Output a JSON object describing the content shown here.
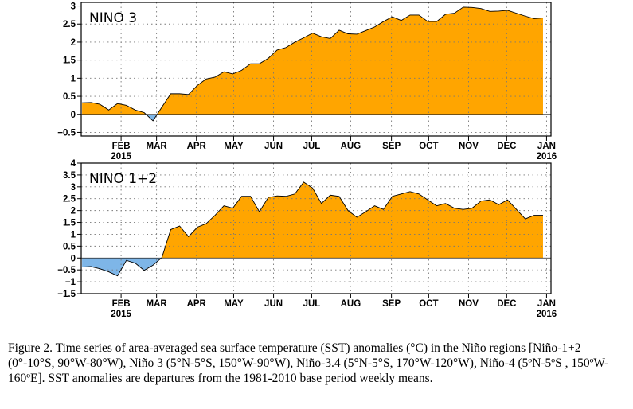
{
  "colors": {
    "positive": "#FFA500",
    "negative": "#7EB6E8",
    "outline": "#000000",
    "grid": "#777777"
  },
  "chart_data": [
    {
      "type": "area",
      "title": "NINO 3",
      "xlabel": "",
      "ylabel": "",
      "ylim": [
        -0.6,
        3.1
      ],
      "yticks": [
        -0.5,
        0,
        0.5,
        1,
        1.5,
        2,
        2.5,
        3
      ],
      "ytick_labels": [
        "−0.5",
        "0",
        "0.5",
        "1",
        "1.5",
        "2",
        "2.5",
        "3"
      ],
      "x_unit": "weeks since 31 Dec 2014",
      "xlim": [
        -0.1,
        52.9
      ],
      "month_ticks": [
        {
          "x": 4.4,
          "label": "FEB",
          "sub": "2015"
        },
        {
          "x": 8.4,
          "label": "MAR",
          "sub": ""
        },
        {
          "x": 12.9,
          "label": "APR",
          "sub": ""
        },
        {
          "x": 17.1,
          "label": "MAY",
          "sub": ""
        },
        {
          "x": 21.6,
          "label": "JUN",
          "sub": ""
        },
        {
          "x": 25.9,
          "label": "JUL",
          "sub": ""
        },
        {
          "x": 30.3,
          "label": "AUG",
          "sub": ""
        },
        {
          "x": 34.9,
          "label": "SEP",
          "sub": ""
        },
        {
          "x": 39.1,
          "label": "OCT",
          "sub": ""
        },
        {
          "x": 43.6,
          "label": "NOV",
          "sub": ""
        },
        {
          "x": 47.9,
          "label": "DEC",
          "sub": ""
        },
        {
          "x": 52.4,
          "label": "JAN",
          "sub": "2016"
        }
      ],
      "x": [
        0,
        1,
        2,
        3,
        4,
        5,
        6,
        7,
        8,
        9,
        10,
        11,
        12,
        13,
        14,
        15,
        16,
        17,
        18,
        19,
        20,
        21,
        22,
        23,
        24,
        25,
        26,
        27,
        28,
        29,
        30,
        31,
        32,
        33,
        34,
        35,
        36,
        37,
        38,
        39,
        40,
        41,
        42,
        43,
        44,
        45,
        46,
        47,
        48,
        49,
        50,
        51,
        52
      ],
      "values": [
        0.32,
        0.33,
        0.28,
        0.12,
        0.3,
        0.25,
        0.12,
        0.05,
        -0.18,
        0.2,
        0.57,
        0.57,
        0.55,
        0.8,
        0.98,
        1.03,
        1.18,
        1.12,
        1.22,
        1.4,
        1.4,
        1.55,
        1.78,
        1.85,
        2.0,
        2.12,
        2.25,
        2.15,
        2.1,
        2.33,
        2.23,
        2.22,
        2.32,
        2.42,
        2.57,
        2.7,
        2.6,
        2.75,
        2.75,
        2.57,
        2.57,
        2.77,
        2.8,
        2.97,
        2.96,
        2.93,
        2.85,
        2.86,
        2.88,
        2.8,
        2.72,
        2.65,
        2.67
      ]
    },
    {
      "type": "area",
      "title": "NINO 1+2",
      "xlabel": "",
      "ylabel": "",
      "ylim": [
        -1.5,
        4.0
      ],
      "yticks": [
        -1.5,
        -1,
        -0.5,
        0,
        0.5,
        1,
        1.5,
        2,
        2.5,
        3,
        3.5,
        4
      ],
      "ytick_labels": [
        "−1.5",
        "−1",
        "−0.5",
        "0",
        "0.5",
        "1",
        "1.5",
        "2",
        "2.5",
        "3",
        "3.5",
        "4"
      ],
      "x_unit": "weeks since 31 Dec 2014",
      "xlim": [
        -0.1,
        52.9
      ],
      "month_ticks": [
        {
          "x": 4.4,
          "label": "FEB",
          "sub": "2015"
        },
        {
          "x": 8.4,
          "label": "MAR",
          "sub": ""
        },
        {
          "x": 12.9,
          "label": "APR",
          "sub": ""
        },
        {
          "x": 17.1,
          "label": "MAY",
          "sub": ""
        },
        {
          "x": 21.6,
          "label": "JUN",
          "sub": ""
        },
        {
          "x": 25.9,
          "label": "JUL",
          "sub": ""
        },
        {
          "x": 30.3,
          "label": "AUG",
          "sub": ""
        },
        {
          "x": 34.9,
          "label": "SEP",
          "sub": ""
        },
        {
          "x": 39.1,
          "label": "OCT",
          "sub": ""
        },
        {
          "x": 43.6,
          "label": "NOV",
          "sub": ""
        },
        {
          "x": 47.9,
          "label": "DEC",
          "sub": ""
        },
        {
          "x": 52.4,
          "label": "JAN",
          "sub": "2016"
        }
      ],
      "x": [
        0,
        1,
        2,
        3,
        4,
        5,
        6,
        7,
        8,
        9,
        10,
        11,
        12,
        13,
        14,
        15,
        16,
        17,
        18,
        19,
        20,
        21,
        22,
        23,
        24,
        25,
        26,
        27,
        28,
        29,
        30,
        31,
        32,
        33,
        34,
        35,
        36,
        37,
        38,
        39,
        40,
        41,
        42,
        43,
        44,
        45,
        46,
        47,
        48,
        49,
        50,
        51,
        52
      ],
      "values": [
        -0.38,
        -0.36,
        -0.45,
        -0.58,
        -0.75,
        -0.1,
        -0.22,
        -0.52,
        -0.3,
        0.02,
        1.2,
        1.35,
        0.9,
        1.3,
        1.45,
        1.8,
        2.2,
        2.1,
        2.6,
        2.6,
        1.95,
        2.55,
        2.62,
        2.6,
        2.7,
        3.2,
        2.95,
        2.3,
        2.65,
        2.6,
        2.0,
        1.72,
        1.95,
        2.2,
        2.05,
        2.6,
        2.7,
        2.8,
        2.7,
        2.45,
        2.2,
        2.3,
        2.1,
        2.05,
        2.1,
        2.4,
        2.45,
        2.25,
        2.45,
        2.05,
        1.65,
        1.8,
        1.8
      ]
    }
  ],
  "caption": "Figure 2. Time series of area-averaged sea surface temperature (SST) anomalies (°C) in the Niño regions [Niño-1+2 (0°-10°S, 90°W-80°W), Niño 3 (5°N-5°S, 150°W-90°W), Niño-3.4 (5°N-5°S, 170°W-120°W), Niño-4 (5ºN-5ºS , 150ºW-160ºE]. SST anomalies are departures from the 1981-2010 base period weekly means."
}
